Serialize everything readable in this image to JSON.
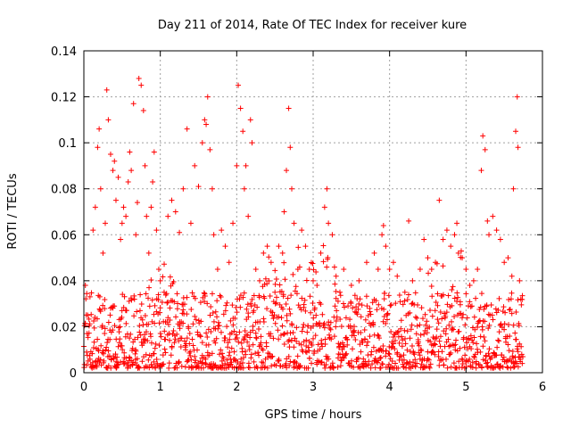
{
  "chart_data": {
    "type": "scatter",
    "title": "Day 211 of 2014, Rate Of TEC Index for receiver kure",
    "xlabel": "GPS time / hours",
    "ylabel": "ROTI / TECUs",
    "xlim": [
      0,
      6
    ],
    "ylim": [
      0,
      0.14
    ],
    "xticks": [
      0,
      1,
      2,
      3,
      4,
      5,
      6
    ],
    "xtick_labels": [
      "0",
      "1",
      "2",
      "3",
      "4",
      "5",
      "6"
    ],
    "yticks": [
      0,
      0.02,
      0.04,
      0.06,
      0.08,
      0.1,
      0.12,
      0.14
    ],
    "ytick_labels": [
      "0",
      "0.02",
      "0.04",
      "0.06",
      "0.08",
      "0.1",
      "0.12",
      "0.14"
    ],
    "grid": true,
    "marker": "+",
    "color": "#ff0000",
    "series": [
      {
        "name": "ROTI",
        "points": [
          [
            0.02,
            0.038
          ],
          [
            0.05,
            0.025
          ],
          [
            0.08,
            0.033
          ],
          [
            0.12,
            0.062
          ],
          [
            0.15,
            0.072
          ],
          [
            0.18,
            0.098
          ],
          [
            0.2,
            0.106
          ],
          [
            0.22,
            0.08
          ],
          [
            0.25,
            0.052
          ],
          [
            0.28,
            0.065
          ],
          [
            0.3,
            0.123
          ],
          [
            0.32,
            0.11
          ],
          [
            0.35,
            0.095
          ],
          [
            0.38,
            0.088
          ],
          [
            0.4,
            0.092
          ],
          [
            0.42,
            0.075
          ],
          [
            0.45,
            0.085
          ],
          [
            0.48,
            0.058
          ],
          [
            0.5,
            0.065
          ],
          [
            0.52,
            0.072
          ],
          [
            0.55,
            0.068
          ],
          [
            0.58,
            0.083
          ],
          [
            0.6,
            0.096
          ],
          [
            0.62,
            0.088
          ],
          [
            0.65,
            0.117
          ],
          [
            0.68,
            0.06
          ],
          [
            0.7,
            0.074
          ],
          [
            0.72,
            0.128
          ],
          [
            0.75,
            0.125
          ],
          [
            0.78,
            0.114
          ],
          [
            0.8,
            0.09
          ],
          [
            0.82,
            0.068
          ],
          [
            0.85,
            0.052
          ],
          [
            0.88,
            0.072
          ],
          [
            0.9,
            0.083
          ],
          [
            0.92,
            0.096
          ],
          [
            0.95,
            0.062
          ],
          [
            0.98,
            0.045
          ],
          [
            1.0,
            0.04
          ],
          [
            1.05,
            0.035
          ],
          [
            1.1,
            0.068
          ],
          [
            1.15,
            0.075
          ],
          [
            1.2,
            0.07
          ],
          [
            1.25,
            0.061
          ],
          [
            1.3,
            0.08
          ],
          [
            1.35,
            0.106
          ],
          [
            1.4,
            0.065
          ],
          [
            1.45,
            0.09
          ],
          [
            1.5,
            0.081
          ],
          [
            1.55,
            0.1
          ],
          [
            1.58,
            0.11
          ],
          [
            1.6,
            0.108
          ],
          [
            1.62,
            0.12
          ],
          [
            1.65,
            0.097
          ],
          [
            1.68,
            0.08
          ],
          [
            1.7,
            0.06
          ],
          [
            1.75,
            0.045
          ],
          [
            1.8,
            0.062
          ],
          [
            1.85,
            0.055
          ],
          [
            1.9,
            0.048
          ],
          [
            1.95,
            0.065
          ],
          [
            2.0,
            0.09
          ],
          [
            2.02,
            0.125
          ],
          [
            2.05,
            0.115
          ],
          [
            2.08,
            0.105
          ],
          [
            2.1,
            0.08
          ],
          [
            2.12,
            0.09
          ],
          [
            2.15,
            0.068
          ],
          [
            2.18,
            0.11
          ],
          [
            2.2,
            0.1
          ],
          [
            2.25,
            0.045
          ],
          [
            2.3,
            0.04
          ],
          [
            2.35,
            0.052
          ],
          [
            2.4,
            0.055
          ],
          [
            2.45,
            0.048
          ],
          [
            2.5,
            0.035
          ],
          [
            2.55,
            0.055
          ],
          [
            2.6,
            0.052
          ],
          [
            2.62,
            0.07
          ],
          [
            2.65,
            0.088
          ],
          [
            2.68,
            0.115
          ],
          [
            2.7,
            0.098
          ],
          [
            2.72,
            0.08
          ],
          [
            2.75,
            0.065
          ],
          [
            2.8,
            0.045
          ],
          [
            2.85,
            0.062
          ],
          [
            2.9,
            0.055
          ],
          [
            2.95,
            0.045
          ],
          [
            3.0,
            0.04
          ],
          [
            3.05,
            0.038
          ],
          [
            3.1,
            0.052
          ],
          [
            3.15,
            0.072
          ],
          [
            3.18,
            0.08
          ],
          [
            3.2,
            0.065
          ],
          [
            3.25,
            0.06
          ],
          [
            3.3,
            0.042
          ],
          [
            3.35,
            0.035
          ],
          [
            3.4,
            0.045
          ],
          [
            3.5,
            0.038
          ],
          [
            3.6,
            0.04
          ],
          [
            3.7,
            0.048
          ],
          [
            3.8,
            0.052
          ],
          [
            3.85,
            0.045
          ],
          [
            3.9,
            0.06
          ],
          [
            3.92,
            0.064
          ],
          [
            3.95,
            0.055
          ],
          [
            4.0,
            0.045
          ],
          [
            4.05,
            0.048
          ],
          [
            4.1,
            0.042
          ],
          [
            4.2,
            0.035
          ],
          [
            4.25,
            0.066
          ],
          [
            4.3,
            0.04
          ],
          [
            4.4,
            0.045
          ],
          [
            4.45,
            0.058
          ],
          [
            4.5,
            0.05
          ],
          [
            4.55,
            0.045
          ],
          [
            4.6,
            0.048
          ],
          [
            4.65,
            0.075
          ],
          [
            4.7,
            0.058
          ],
          [
            4.75,
            0.062
          ],
          [
            4.8,
            0.055
          ],
          [
            4.85,
            0.06
          ],
          [
            4.88,
            0.065
          ],
          [
            4.9,
            0.052
          ],
          [
            4.95,
            0.05
          ],
          [
            5.0,
            0.045
          ],
          [
            5.05,
            0.038
          ],
          [
            5.1,
            0.04
          ],
          [
            5.15,
            0.045
          ],
          [
            5.2,
            0.088
          ],
          [
            5.22,
            0.103
          ],
          [
            5.25,
            0.097
          ],
          [
            5.28,
            0.066
          ],
          [
            5.3,
            0.06
          ],
          [
            5.35,
            0.068
          ],
          [
            5.4,
            0.062
          ],
          [
            5.45,
            0.058
          ],
          [
            5.5,
            0.048
          ],
          [
            5.55,
            0.05
          ],
          [
            5.6,
            0.042
          ],
          [
            5.62,
            0.08
          ],
          [
            5.65,
            0.105
          ],
          [
            5.67,
            0.12
          ],
          [
            5.68,
            0.098
          ],
          [
            5.7,
            0.04
          ]
        ]
      }
    ],
    "dense_band": {
      "description": "dense background noise of ROTI samples across the full time range",
      "x_range": [
        0,
        5.75
      ],
      "y_range": [
        0.002,
        0.035
      ],
      "typical": 0.012
    }
  }
}
